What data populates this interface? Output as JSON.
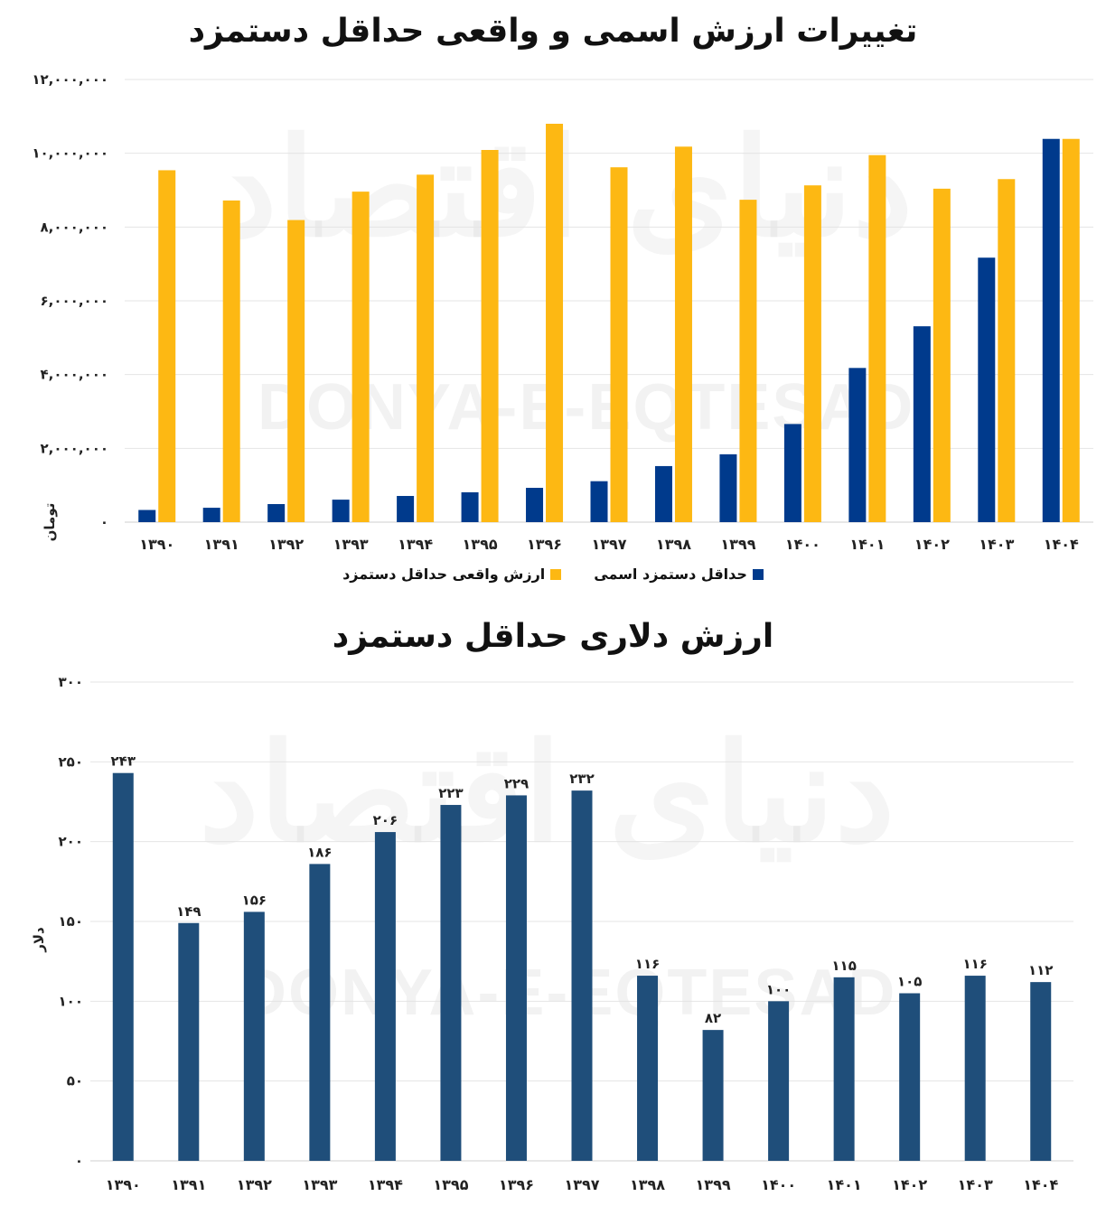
{
  "watermark": {
    "latin": "DONYA-E-EQTESAD",
    "persian": "دنیای اقتصاد"
  },
  "chart1": {
    "title": "تغییرات ارزش اسمی و واقعی حداقل دستمزد",
    "ylabel": "تومان",
    "yticks": [
      "۰",
      "۲,۰۰۰,۰۰۰",
      "۴,۰۰۰,۰۰۰",
      "۶,۰۰۰,۰۰۰",
      "۸,۰۰۰,۰۰۰",
      "۱۰,۰۰۰,۰۰۰",
      "۱۲,۰۰۰,۰۰۰"
    ],
    "legend": [
      {
        "label": "حداقل دستمزد اسمی",
        "color": "#003A8C"
      },
      {
        "label": "ارزش واقعی حداقل دستمزد",
        "color": "#FDB813"
      }
    ]
  },
  "chart2": {
    "title": "ارزش دلاری حداقل دستمزد",
    "ylabel": "دلار",
    "yticks": [
      "۰",
      "۵۰",
      "۱۰۰",
      "۱۵۰",
      "۲۰۰",
      "۲۵۰",
      "۳۰۰"
    ],
    "data_labels": [
      "۲۴۳",
      "۱۴۹",
      "۱۵۶",
      "۱۸۶",
      "۲۰۶",
      "۲۲۳",
      "۲۲۹",
      "۲۳۲",
      "۱۱۶",
      "۸۲",
      "۱۰۰",
      "۱۱۵",
      "۱۰۵",
      "۱۱۶",
      "۱۱۲"
    ]
  },
  "chart_data": [
    {
      "type": "bar",
      "title": "تغییرات ارزش اسمی و واقعی حداقل دستمزد",
      "xlabel": "",
      "ylabel": "تومان",
      "ylim": [
        0,
        12000000
      ],
      "grid": true,
      "legend_position": "bottom",
      "categories": [
        "۱۳۹۰",
        "۱۳۹۱",
        "۱۳۹۲",
        "۱۳۹۳",
        "۱۳۹۴",
        "۱۳۹۵",
        "۱۳۹۶",
        "۱۳۹۷",
        "۱۳۹۸",
        "۱۳۹۹",
        "۱۴۰۰",
        "۱۴۰۱",
        "۱۴۰۲",
        "۱۴۰۳",
        "۱۴۰۴"
      ],
      "series": [
        {
          "name": "حداقل دستمزد اسمی",
          "color": "#003A8C",
          "values": [
            330000,
            390000,
            490000,
            610000,
            710000,
            810000,
            930000,
            1110000,
            1520000,
            1840000,
            2660000,
            4180000,
            5310000,
            7170000,
            10390000
          ]
        },
        {
          "name": "ارزش واقعی حداقل دستمزد",
          "color": "#FDB813",
          "values": [
            9540000,
            8720000,
            8190000,
            8960000,
            9420000,
            10090000,
            10800000,
            9620000,
            10180000,
            8740000,
            9130000,
            9950000,
            9040000,
            9300000,
            10390000
          ]
        }
      ]
    },
    {
      "type": "bar",
      "title": "ارزش دلاری حداقل دستمزد",
      "xlabel": "",
      "ylabel": "دلار",
      "ylim": [
        0,
        300
      ],
      "grid": true,
      "categories": [
        "۱۳۹۰",
        "۱۳۹۱",
        "۱۳۹۲",
        "۱۳۹۳",
        "۱۳۹۴",
        "۱۳۹۵",
        "۱۳۹۶",
        "۱۳۹۷",
        "۱۳۹۸",
        "۱۳۹۹",
        "۱۴۰۰",
        "۱۴۰۱",
        "۱۴۰۲",
        "۱۴۰۳",
        "۱۴۰۴"
      ],
      "series": [
        {
          "color": "#1F4E7A",
          "values": [
            243,
            149,
            156,
            186,
            206,
            223,
            229,
            232,
            116,
            82,
            100,
            115,
            105,
            116,
            112
          ]
        }
      ]
    }
  ]
}
